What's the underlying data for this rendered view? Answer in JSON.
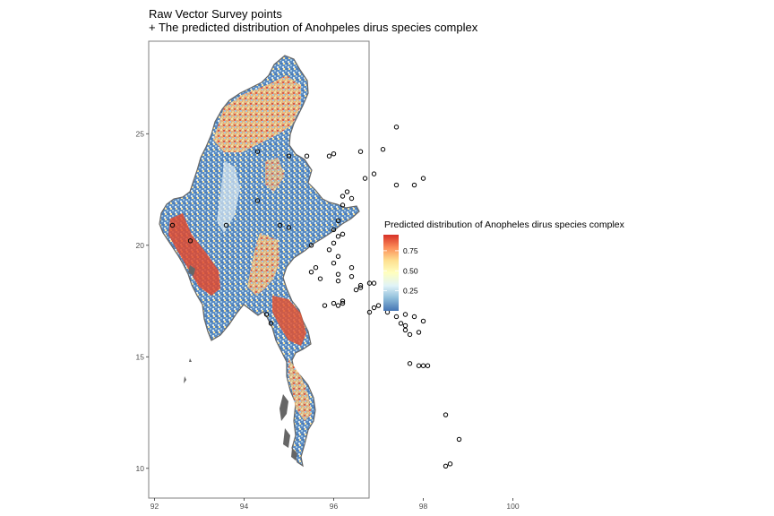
{
  "title": {
    "line1": "Raw Vector Survey points",
    "line2": "+ The predicted distribution of Anohpeles dirus species complex"
  },
  "axes": {
    "x_ticks": [
      92,
      94,
      96,
      98,
      100
    ],
    "y_ticks": [
      10,
      15,
      20,
      25
    ],
    "x_range": [
      91.7,
      101.6
    ],
    "y_range": [
      8.6,
      29.0
    ]
  },
  "legend": {
    "title": "Predicted distribution of Anopheles dirus species complex",
    "breaks": [
      "0.25",
      "0.50",
      "0.75"
    ],
    "break_values": [
      0.25,
      0.5,
      0.75
    ],
    "range": [
      0.0,
      0.95
    ],
    "colors": [
      "#4575b4",
      "#91bfdb",
      "#e0f3f8",
      "#ffffbf",
      "#fee090",
      "#fc8d59",
      "#d73027"
    ]
  },
  "colors": {
    "panel_border": "#7f7f7f",
    "country_outline": "#666666",
    "points": "#000000"
  },
  "chart_data": {
    "type": "map",
    "title": "Raw Vector Survey points + The predicted distribution of Anohpeles dirus species complex",
    "xlabel": "",
    "ylabel": "",
    "xlim": [
      91.7,
      101.6
    ],
    "ylim": [
      8.6,
      29.0
    ],
    "grid": false,
    "legend": "right",
    "survey_points": [
      [
        94.3,
        24.2
      ],
      [
        95.0,
        24.0
      ],
      [
        95.4,
        24.0
      ],
      [
        95.9,
        24.0
      ],
      [
        96.0,
        24.1
      ],
      [
        96.6,
        24.2
      ],
      [
        97.1,
        24.3
      ],
      [
        97.4,
        25.3
      ],
      [
        96.7,
        23.0
      ],
      [
        96.9,
        23.2
      ],
      [
        97.4,
        22.7
      ],
      [
        97.8,
        22.7
      ],
      [
        98.0,
        23.0
      ],
      [
        96.2,
        22.2
      ],
      [
        96.3,
        22.4
      ],
      [
        96.4,
        22.1
      ],
      [
        96.2,
        21.8
      ],
      [
        94.8,
        20.9
      ],
      [
        95.0,
        20.8
      ],
      [
        96.0,
        20.7
      ],
      [
        96.1,
        21.1
      ],
      [
        96.2,
        20.5
      ],
      [
        96.1,
        20.4
      ],
      [
        95.5,
        20.0
      ],
      [
        95.9,
        19.8
      ],
      [
        96.1,
        19.5
      ],
      [
        96.0,
        19.2
      ],
      [
        96.4,
        19.0
      ],
      [
        95.6,
        19.0
      ],
      [
        95.5,
        18.8
      ],
      [
        96.1,
        18.7
      ],
      [
        96.4,
        18.6
      ],
      [
        96.1,
        18.4
      ],
      [
        95.7,
        18.5
      ],
      [
        96.6,
        18.2
      ],
      [
        96.8,
        18.3
      ],
      [
        96.9,
        18.3
      ],
      [
        96.6,
        18.1
      ],
      [
        96.5,
        18.0
      ],
      [
        96.2,
        17.5
      ],
      [
        96.0,
        17.4
      ],
      [
        96.1,
        17.3
      ],
      [
        96.2,
        17.4
      ],
      [
        95.8,
        17.3
      ],
      [
        96.9,
        17.2
      ],
      [
        97.0,
        17.3
      ],
      [
        96.8,
        17.0
      ],
      [
        97.2,
        17.0
      ],
      [
        97.6,
        16.9
      ],
      [
        97.8,
        16.8
      ],
      [
        97.5,
        16.5
      ],
      [
        97.6,
        16.4
      ],
      [
        97.6,
        16.2
      ],
      [
        97.7,
        16.0
      ],
      [
        97.4,
        16.8
      ],
      [
        98.0,
        16.6
      ],
      [
        97.9,
        16.1
      ],
      [
        97.7,
        14.7
      ],
      [
        97.9,
        14.6
      ],
      [
        98.0,
        14.6
      ],
      [
        98.1,
        14.6
      ],
      [
        98.5,
        12.4
      ],
      [
        98.8,
        11.3
      ],
      [
        98.6,
        10.2
      ],
      [
        98.5,
        10.1
      ],
      [
        94.5,
        16.9
      ],
      [
        94.6,
        16.5
      ],
      [
        92.4,
        20.9
      ],
      [
        92.8,
        20.2
      ],
      [
        93.6,
        20.9
      ],
      [
        94.3,
        22.0
      ],
      [
        96.0,
        20.1
      ]
    ]
  }
}
